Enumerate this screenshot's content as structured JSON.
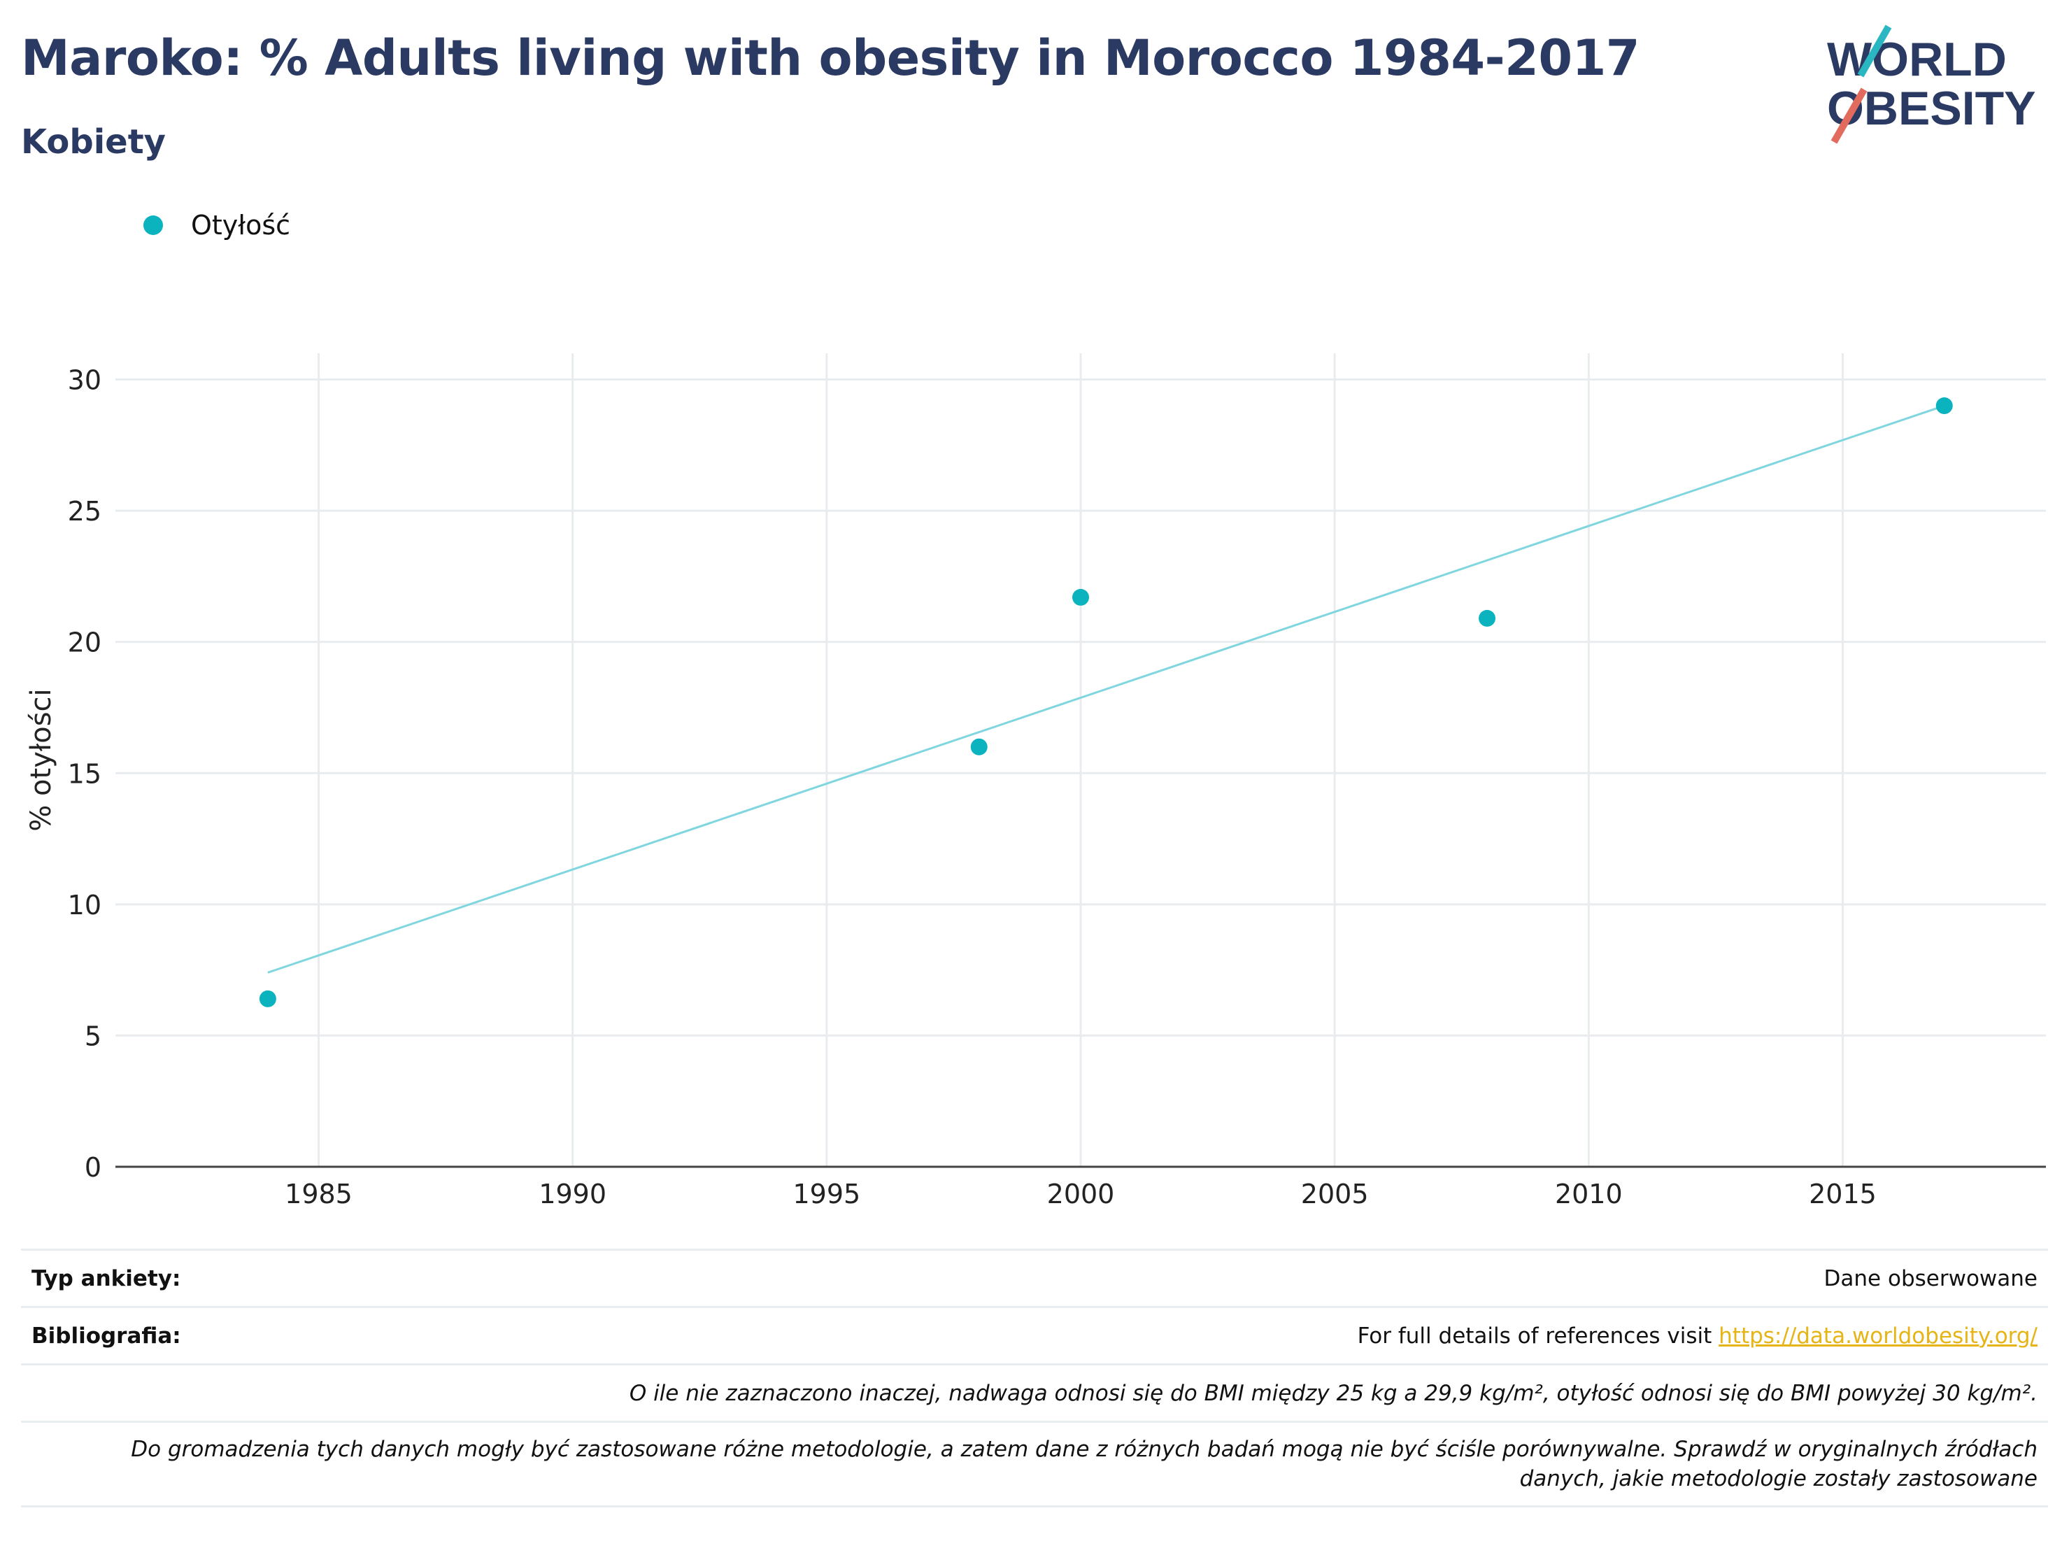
{
  "header": {
    "title": "Maroko: % Adults living with obesity in Morocco 1984-2017",
    "subtitle": "Kobiety"
  },
  "logo": {
    "line1": "WORLD",
    "line2": "OBESITY"
  },
  "colors": {
    "title": "#2b3a63",
    "series": "#0ab3bd",
    "trend": "#7fd6de",
    "link": "#e7b416",
    "logo_teal": "#2bb7c1",
    "logo_red": "#e26b5d"
  },
  "chart_data": {
    "type": "scatter",
    "series": [
      {
        "name": "Otyłość",
        "x": [
          1984,
          1998,
          2000,
          2008,
          2017
        ],
        "y": [
          6.4,
          16.0,
          21.7,
          20.9,
          29.0
        ]
      }
    ],
    "trendline": {
      "x": [
        1984,
        2017
      ],
      "y": [
        7.4,
        29.0
      ]
    },
    "xlim": [
      1981,
      2019
    ],
    "ylim": [
      0,
      31
    ],
    "xticks": [
      1985,
      1990,
      1995,
      2000,
      2005,
      2010,
      2015
    ],
    "yticks": [
      0,
      5,
      10,
      15,
      20,
      25,
      30
    ],
    "ylabel": "% otyłości",
    "xlabel": "",
    "grid": true,
    "legend_position": "top-left"
  },
  "footer": {
    "survey_label": "Typ ankiety:",
    "survey_value": "Dane obserwowane",
    "biblio_label": "Bibliografia:",
    "biblio_text": "For full details of references visit ",
    "biblio_link": "https://data.worldobesity.org/",
    "note1": "O ile nie zaznaczono inaczej, nadwaga odnosi się do BMI między 25 kg a 29,9 kg/m², otyłość odnosi się do BMI powyżej 30 kg/m².",
    "note2a": "Do gromadzenia tych danych mogły być zastosowane różne metodologie, a zatem dane z różnych badań mogą nie być ściśle porównywalne. Sprawdź w oryginalnych źródłach",
    "note2b": "danych, jakie metodologie zostały zastosowane"
  }
}
